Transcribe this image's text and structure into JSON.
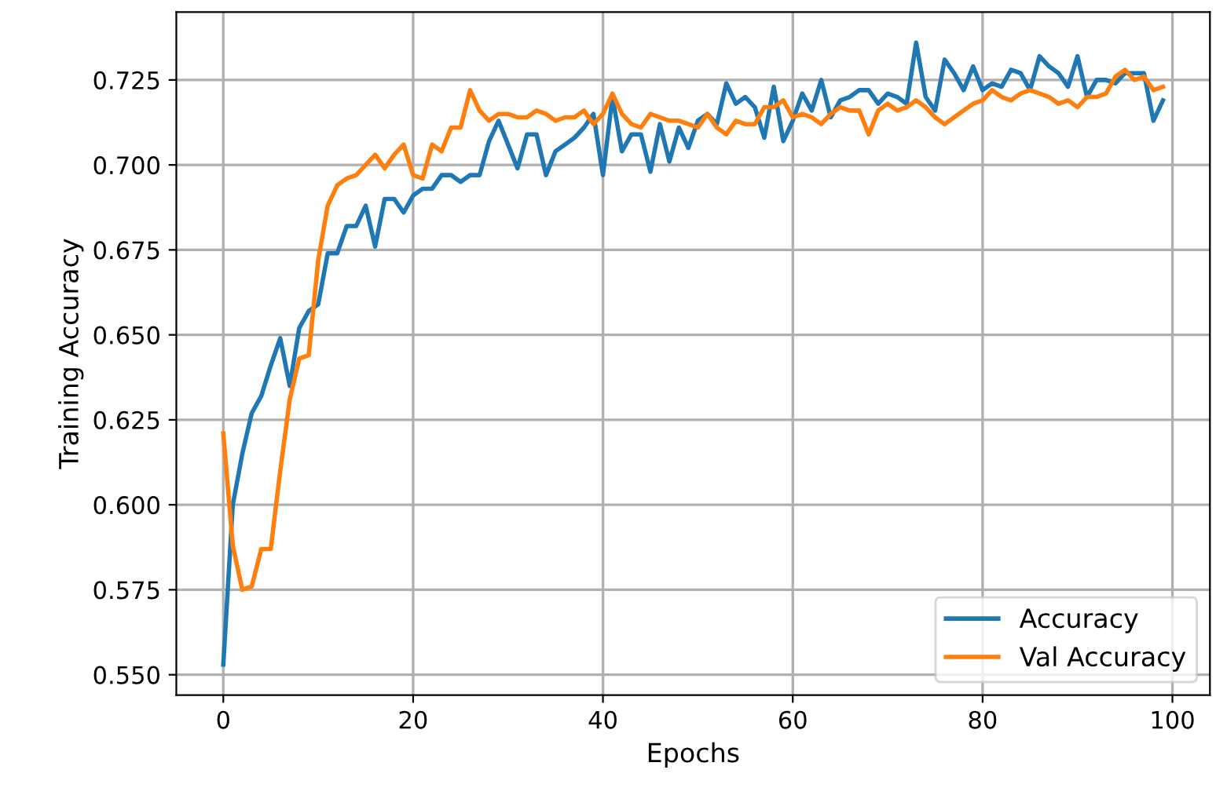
{
  "chart_data": {
    "type": "line",
    "xlabel": "Epochs",
    "ylabel": "Training Accuracy",
    "x": [
      0,
      1,
      2,
      3,
      4,
      5,
      6,
      7,
      8,
      9,
      10,
      11,
      12,
      13,
      14,
      15,
      16,
      17,
      18,
      19,
      20,
      21,
      22,
      23,
      24,
      25,
      26,
      27,
      28,
      29,
      30,
      31,
      32,
      33,
      34,
      35,
      36,
      37,
      38,
      39,
      40,
      41,
      42,
      43,
      44,
      45,
      46,
      47,
      48,
      49,
      50,
      51,
      52,
      53,
      54,
      55,
      56,
      57,
      58,
      59,
      60,
      61,
      62,
      63,
      64,
      65,
      66,
      67,
      68,
      69,
      70,
      71,
      72,
      73,
      74,
      75,
      76,
      77,
      78,
      79,
      80,
      81,
      82,
      83,
      84,
      85,
      86,
      87,
      88,
      89,
      90,
      91,
      92,
      93,
      94,
      95,
      96,
      97,
      98,
      99
    ],
    "series": [
      {
        "name": "Accuracy",
        "color": "#1f77b4",
        "values": [
          0.553,
          0.6,
          0.615,
          0.627,
          0.632,
          0.641,
          0.649,
          0.635,
          0.652,
          0.657,
          0.659,
          0.674,
          0.674,
          0.682,
          0.682,
          0.688,
          0.676,
          0.69,
          0.69,
          0.686,
          0.691,
          0.693,
          0.693,
          0.697,
          0.697,
          0.695,
          0.697,
          0.697,
          0.707,
          0.713,
          0.706,
          0.699,
          0.709,
          0.709,
          0.697,
          0.704,
          0.706,
          0.708,
          0.711,
          0.715,
          0.697,
          0.72,
          0.704,
          0.709,
          0.709,
          0.698,
          0.712,
          0.701,
          0.711,
          0.705,
          0.713,
          0.715,
          0.712,
          0.724,
          0.718,
          0.72,
          0.717,
          0.708,
          0.723,
          0.707,
          0.713,
          0.721,
          0.716,
          0.725,
          0.714,
          0.719,
          0.72,
          0.722,
          0.722,
          0.718,
          0.721,
          0.72,
          0.718,
          0.736,
          0.72,
          0.716,
          0.731,
          0.727,
          0.722,
          0.729,
          0.722,
          0.724,
          0.723,
          0.728,
          0.727,
          0.722,
          0.732,
          0.729,
          0.727,
          0.723,
          0.732,
          0.72,
          0.725,
          0.725,
          0.724,
          0.727,
          0.727,
          0.727,
          0.713,
          0.719
        ]
      },
      {
        "name": "Val Accuracy",
        "color": "#ff7f0e",
        "values": [
          0.621,
          0.588,
          0.575,
          0.576,
          0.587,
          0.587,
          0.61,
          0.631,
          0.643,
          0.644,
          0.672,
          0.688,
          0.694,
          0.696,
          0.697,
          0.7,
          0.703,
          0.699,
          0.703,
          0.706,
          0.697,
          0.696,
          0.706,
          0.704,
          0.711,
          0.711,
          0.722,
          0.716,
          0.713,
          0.715,
          0.715,
          0.714,
          0.714,
          0.716,
          0.715,
          0.713,
          0.714,
          0.714,
          0.716,
          0.712,
          0.715,
          0.721,
          0.715,
          0.712,
          0.711,
          0.715,
          0.714,
          0.713,
          0.713,
          0.712,
          0.711,
          0.715,
          0.711,
          0.709,
          0.713,
          0.712,
          0.712,
          0.717,
          0.717,
          0.719,
          0.714,
          0.715,
          0.714,
          0.712,
          0.715,
          0.717,
          0.716,
          0.716,
          0.709,
          0.716,
          0.718,
          0.716,
          0.717,
          0.719,
          0.717,
          0.714,
          0.712,
          0.714,
          0.716,
          0.718,
          0.719,
          0.722,
          0.72,
          0.719,
          0.721,
          0.722,
          0.721,
          0.72,
          0.718,
          0.719,
          0.717,
          0.72,
          0.72,
          0.721,
          0.726,
          0.728,
          0.725,
          0.726,
          0.722,
          0.723
        ]
      }
    ],
    "xlim": [
      -4.95,
      103.95
    ],
    "ylim": [
      0.544,
      0.745
    ],
    "xticks": [
      0,
      20,
      40,
      60,
      80,
      100
    ],
    "yticks": [
      {
        "value": 0.55,
        "label": "0.550"
      },
      {
        "value": 0.575,
        "label": "0.575"
      },
      {
        "value": 0.6,
        "label": "0.600"
      },
      {
        "value": 0.625,
        "label": "0.625"
      },
      {
        "value": 0.65,
        "label": "0.650"
      },
      {
        "value": 0.675,
        "label": "0.675"
      },
      {
        "value": 0.7,
        "label": "0.700"
      },
      {
        "value": 0.725,
        "label": "0.725"
      }
    ],
    "grid": true,
    "legend": "lower right"
  }
}
